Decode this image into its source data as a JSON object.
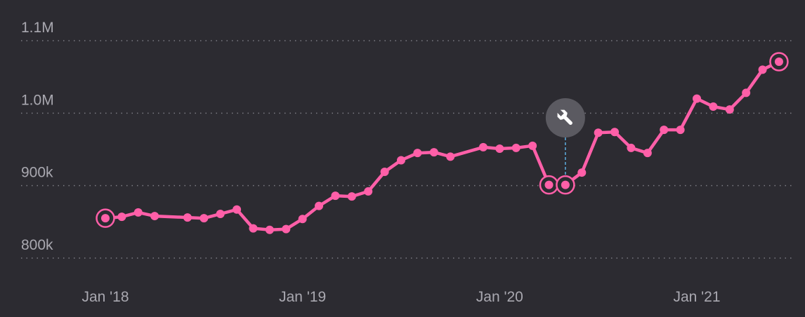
{
  "chart_data": {
    "type": "line",
    "title": "",
    "xlabel": "",
    "ylabel": "",
    "y_ticks": [
      {
        "value": 800000,
        "label": "800k"
      },
      {
        "value": 900000,
        "label": "900k"
      },
      {
        "value": 1000000,
        "label": "1.0M"
      },
      {
        "value": 1100000,
        "label": "1.1M"
      }
    ],
    "x_ticks": [
      {
        "value": "2018-01",
        "label": "Jan '18"
      },
      {
        "value": "2019-01",
        "label": "Jan '19"
      },
      {
        "value": "2020-01",
        "label": "Jan '20"
      },
      {
        "value": "2021-01",
        "label": "Jan '21"
      }
    ],
    "ylim": [
      800000,
      1100000
    ],
    "grid": true,
    "line_color": "#ff5fa8",
    "series": [
      {
        "points": [
          {
            "x": "2018-01",
            "y": 855000,
            "highlight": true
          },
          {
            "x": "2018-02",
            "y": 857000
          },
          {
            "x": "2018-03",
            "y": 863000
          },
          {
            "x": "2018-04",
            "y": 858000
          },
          {
            "x": "2018-06",
            "y": 856000
          },
          {
            "x": "2018-07",
            "y": 855000
          },
          {
            "x": "2018-08",
            "y": 861000
          },
          {
            "x": "2018-09",
            "y": 867000
          },
          {
            "x": "2018-10",
            "y": 841000
          },
          {
            "x": "2018-11",
            "y": 839000
          },
          {
            "x": "2018-12",
            "y": 840000
          },
          {
            "x": "2019-01",
            "y": 854000
          },
          {
            "x": "2019-02",
            "y": 872000
          },
          {
            "x": "2019-03",
            "y": 886000
          },
          {
            "x": "2019-04",
            "y": 885000
          },
          {
            "x": "2019-05",
            "y": 892000
          },
          {
            "x": "2019-06",
            "y": 919000
          },
          {
            "x": "2019-07",
            "y": 935000
          },
          {
            "x": "2019-08",
            "y": 945000
          },
          {
            "x": "2019-09",
            "y": 946000
          },
          {
            "x": "2019-10",
            "y": 940000
          },
          {
            "x": "2019-12",
            "y": 953000
          },
          {
            "x": "2020-01",
            "y": 951000
          },
          {
            "x": "2020-02",
            "y": 952000
          },
          {
            "x": "2020-03",
            "y": 955000
          },
          {
            "x": "2020-04",
            "y": 901000,
            "highlight": true
          },
          {
            "x": "2020-05",
            "y": 901000,
            "highlight": true
          },
          {
            "x": "2020-06",
            "y": 918000
          },
          {
            "x": "2020-07",
            "y": 973000
          },
          {
            "x": "2020-08",
            "y": 974000
          },
          {
            "x": "2020-09",
            "y": 952000
          },
          {
            "x": "2020-10",
            "y": 945000
          },
          {
            "x": "2020-11",
            "y": 977000
          },
          {
            "x": "2020-12",
            "y": 977000
          },
          {
            "x": "2021-01",
            "y": 1020000
          },
          {
            "x": "2021-02",
            "y": 1009000
          },
          {
            "x": "2021-03",
            "y": 1005000
          },
          {
            "x": "2021-04",
            "y": 1028000
          },
          {
            "x": "2021-05",
            "y": 1060000
          },
          {
            "x": "2021-06",
            "y": 1071000,
            "highlight": true
          }
        ]
      }
    ],
    "annotations": [
      {
        "x": "2020-05",
        "icon": "wrench-icon"
      }
    ]
  }
}
